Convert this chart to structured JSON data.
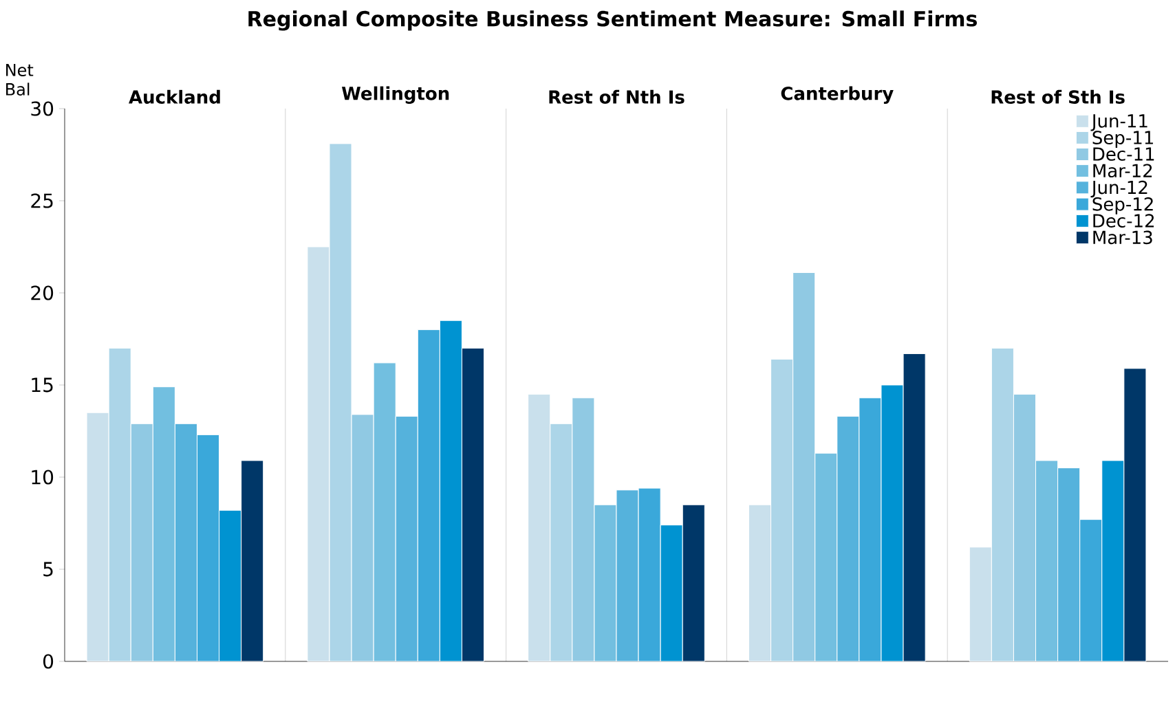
{
  "chart_data": {
    "type": "bar",
    "title": "Regional Composite Business Sentiment Measure: Small Firms",
    "ylabel": "Net Bal",
    "categories": [
      "Auckland",
      "Wellington",
      "Rest of Nth Is",
      "Canterbury",
      "Rest of Sth Is"
    ],
    "series": [
      {
        "name": "Jun-11",
        "color": "#c9e0ec",
        "values": [
          13.5,
          22.5,
          14.5,
          8.5,
          6.2
        ]
      },
      {
        "name": "Sep-11",
        "color": "#acd5e8",
        "values": [
          17.0,
          28.1,
          12.9,
          16.4,
          17.0
        ]
      },
      {
        "name": "Dec-11",
        "color": "#90c9e3",
        "values": [
          12.9,
          13.4,
          14.3,
          21.1,
          14.5
        ]
      },
      {
        "name": "Mar-12",
        "color": "#72bfe0",
        "values": [
          14.9,
          16.2,
          8.5,
          11.3,
          10.9
        ]
      },
      {
        "name": "Jun-12",
        "color": "#55b2dc",
        "values": [
          12.9,
          13.3,
          9.3,
          13.3,
          10.5
        ]
      },
      {
        "name": "Sep-12",
        "color": "#3aa8da",
        "values": [
          12.3,
          18.0,
          9.4,
          14.3,
          7.7
        ]
      },
      {
        "name": "Dec-12",
        "color": "#0093d1",
        "values": [
          8.2,
          18.5,
          7.4,
          15.0,
          10.9
        ]
      },
      {
        "name": "Mar-13",
        "color": "#003768",
        "values": [
          10.9,
          17.0,
          8.5,
          16.7,
          15.9
        ]
      }
    ],
    "ylim": [
      0,
      30
    ],
    "yticks": [
      0,
      5,
      10,
      15,
      20,
      25,
      30
    ],
    "grid": "x",
    "legend": "top right"
  }
}
